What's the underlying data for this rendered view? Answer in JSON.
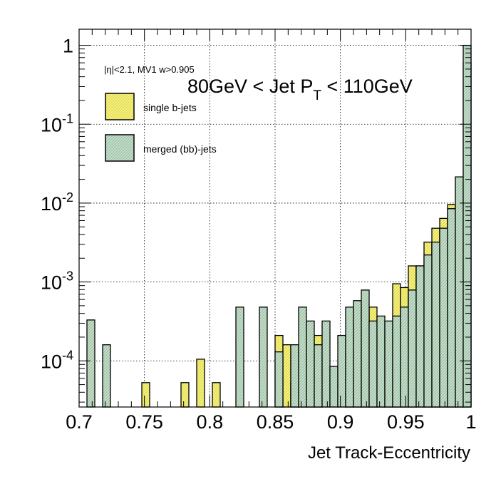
{
  "chart_data": {
    "type": "bar",
    "title": "80GeV < Jet P",
    "title_sub": "T",
    "title_tail": " < 110GeV",
    "cut_label": "|η|<2.1, MV1 w>0.905",
    "xlabel": "Jet Track-Eccentricity",
    "ylabel": "",
    "xlim": [
      0.7,
      1.0
    ],
    "ylim": [
      2.6e-05,
      1.6
    ],
    "y_scale": "log",
    "grid": true,
    "legend_placement": "top-left",
    "bin_width": 0.006,
    "x_ticks": [
      {
        "v": 0.7,
        "label": "0.7"
      },
      {
        "v": 0.75,
        "label": "0.75"
      },
      {
        "v": 0.8,
        "label": "0.8"
      },
      {
        "v": 0.85,
        "label": "0.85"
      },
      {
        "v": 0.9,
        "label": "0.9"
      },
      {
        "v": 0.95,
        "label": "0.95"
      },
      {
        "v": 1.0,
        "label": "1"
      }
    ],
    "y_ticks": [
      {
        "v": 0.0001,
        "base": "10",
        "exp": "-4"
      },
      {
        "v": 0.001,
        "base": "10",
        "exp": "-3"
      },
      {
        "v": 0.01,
        "base": "10",
        "exp": "-2"
      },
      {
        "v": 0.1,
        "base": "10",
        "exp": "-1"
      },
      {
        "v": 1,
        "base": "1",
        "exp": ""
      }
    ],
    "series": [
      {
        "name": "single b-jets",
        "color": "#f5f07a",
        "values": [
          0,
          0,
          0,
          0,
          0,
          0,
          0,
          0,
          5.3e-05,
          0,
          0,
          0,
          0,
          5.3e-05,
          0,
          0.000105,
          0,
          5.3e-05,
          0,
          0,
          0,
          0,
          0,
          0,
          0,
          0.00021,
          0.00016,
          5.3e-05,
          0.00016,
          0.00016,
          0.00021,
          0,
          0,
          0,
          0.00021,
          0.00016,
          0.00021,
          0.00048,
          0.00025,
          0.00025,
          0.00095,
          0.00085,
          0.0016,
          0.0016,
          0.0032,
          0.0048,
          0.0064,
          0.0096,
          0.0215,
          0.6
        ]
      },
      {
        "name": "merged (bb)-jets",
        "color": "#c2dcc7",
        "values": [
          0,
          0.00033,
          0,
          0.00016,
          0,
          0,
          0,
          0,
          0,
          0,
          0,
          0,
          0,
          0,
          0,
          0,
          0,
          0,
          0,
          0,
          0.00048,
          0,
          0,
          0.00048,
          0,
          0.00013,
          0,
          0.00016,
          0.00048,
          0.00032,
          0.00016,
          0.00032,
          8.5e-05,
          0.00021,
          0.00048,
          0.00058,
          0.00079,
          0.00032,
          0.00037,
          0.00032,
          0.00037,
          0.00048,
          0.00079,
          0.0016,
          0.0022,
          0.0032,
          0.0048,
          0.0085,
          0.0215,
          1.0
        ]
      }
    ]
  }
}
